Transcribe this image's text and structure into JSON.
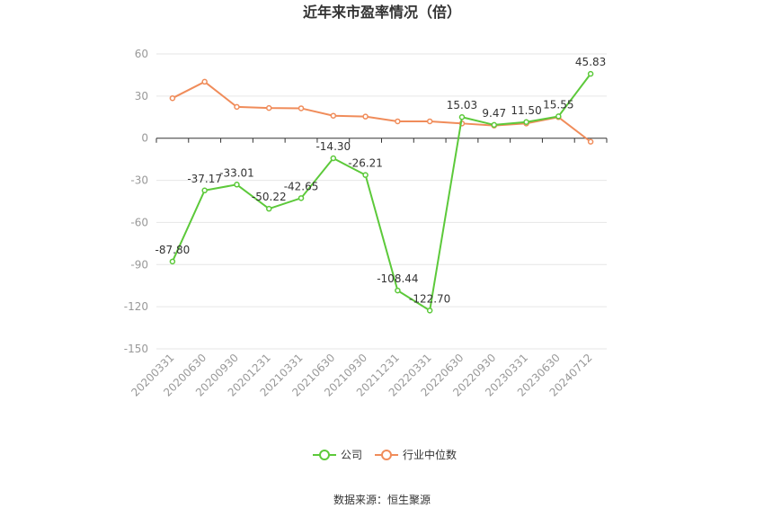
{
  "chart_data": {
    "type": "line",
    "title": "近年来市盈率情况（倍）",
    "categories": [
      "20200331",
      "20200630",
      "20200930",
      "20201231",
      "20210331",
      "20210630",
      "20210930",
      "20211231",
      "20220331",
      "20220630",
      "20220930",
      "20230331",
      "20230630",
      "20240712"
    ],
    "series": [
      {
        "name": "公司",
        "color": "#5cc93a",
        "values": [
          -87.8,
          -37.17,
          -33.01,
          -50.22,
          -42.65,
          -14.3,
          -26.21,
          -108.44,
          -122.7,
          15.03,
          9.47,
          11.5,
          15.55,
          45.83
        ],
        "labels": [
          "-87.80",
          "-37.17",
          "-33.01",
          "-50.22",
          "-42.65",
          "-14.30",
          "-26.21",
          "-108.44",
          "-122.70",
          "15.03",
          "9.47",
          "11.50",
          "15.55",
          "45.83"
        ]
      },
      {
        "name": "行业中位数",
        "color": "#f08c5a",
        "values": [
          28.5,
          40.2,
          22.3,
          21.5,
          21.3,
          16.0,
          15.4,
          12.0,
          12.0,
          10.5,
          9.0,
          10.5,
          15.0,
          -2.5
        ]
      }
    ],
    "y_ticks": [
      "60",
      "30",
      "0",
      "-30",
      "-60",
      "-90",
      "-120",
      "-150"
    ],
    "ylim": [
      -150,
      60
    ],
    "grid": true,
    "legend_position": "bottom"
  },
  "source": "数据来源：恒生聚源"
}
